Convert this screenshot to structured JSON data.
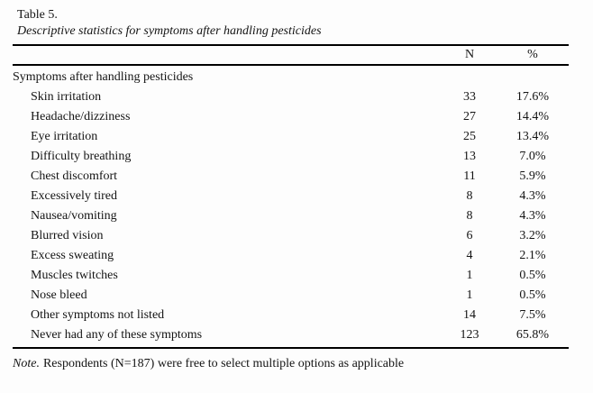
{
  "table": {
    "label": "Table 5.",
    "caption": "Descriptive statistics for symptoms after handling pesticides",
    "col_n_header": "N",
    "col_pct_header": "%",
    "group_header": "Symptoms after handling pesticides",
    "rows": [
      {
        "label": "Skin irritation",
        "n": "33",
        "pct": "17.6%"
      },
      {
        "label": "Headache/dizziness",
        "n": "27",
        "pct": "14.4%"
      },
      {
        "label": "Eye irritation",
        "n": "25",
        "pct": "13.4%"
      },
      {
        "label": "Difficulty breathing",
        "n": "13",
        "pct": "7.0%"
      },
      {
        "label": "Chest discomfort",
        "n": "11",
        "pct": "5.9%"
      },
      {
        "label": "Excessively tired",
        "n": "8",
        "pct": "4.3%"
      },
      {
        "label": "Nausea/vomiting",
        "n": "8",
        "pct": "4.3%"
      },
      {
        "label": "Blurred vision",
        "n": "6",
        "pct": "3.2%"
      },
      {
        "label": "Excess sweating",
        "n": "4",
        "pct": "2.1%"
      },
      {
        "label": "Muscles twitches",
        "n": "1",
        "pct": "0.5%"
      },
      {
        "label": "Nose bleed",
        "n": "1",
        "pct": "0.5%"
      },
      {
        "label": "Other symptoms not listed",
        "n": "14",
        "pct": "7.5%"
      },
      {
        "label": "Never had any of these symptoms",
        "n": "123",
        "pct": "65.8%"
      }
    ],
    "note": {
      "prefix": "Note.",
      "text": "Respondents (N=187) were free to select multiple options as applicable"
    }
  }
}
